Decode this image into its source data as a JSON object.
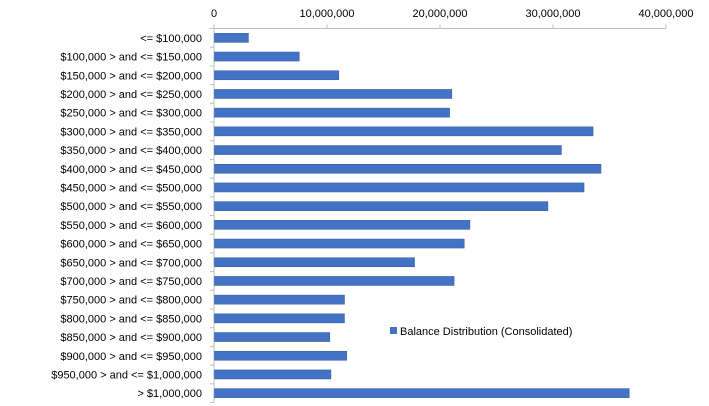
{
  "chart_data": {
    "type": "bar",
    "orientation": "horizontal",
    "categories": [
      "<= $100,000",
      "$100,000 > and <= $150,000",
      "$150,000 > and <= $200,000",
      "$200,000 > and <= $250,000",
      "$250,000 > and <= $300,000",
      "$300,000 > and <= $350,000",
      "$350,000 > and <= $400,000",
      "$400,000 > and <= $450,000",
      "$450,000 > and <= $500,000",
      "$500,000 > and <= $550,000",
      "$550,000 > and <= $600,000",
      "$600,000 > and <= $650,000",
      "$650,000 > and <= $700,000",
      "$700,000 > and <= $750,000",
      "$750,000 > and <= $800,000",
      "$800,000 > and <= $850,000",
      "$850,000 > and <= $900,000",
      "$900,000 > and <= $950,000",
      "$950,000 > and <= $1,000,000",
      "> $1,000,000"
    ],
    "series": [
      {
        "name": "Balance Distribution (Consolidated)",
        "color": "#4472C4",
        "values": [
          3000000,
          7500000,
          11000000,
          21000000,
          20800000,
          33500000,
          30700000,
          34200000,
          32700000,
          29500000,
          22600000,
          22100000,
          17700000,
          21200000,
          11500000,
          11500000,
          10200000,
          11700000,
          10300000,
          36700000
        ]
      }
    ],
    "x_ticks": [
      "0",
      "10,000,000",
      "20,000,000",
      "30,000,000",
      "40,000,000"
    ],
    "xlim": [
      0,
      40000000
    ],
    "x_axis_position": "top",
    "grid": false,
    "legend": "inside-bottom-right",
    "title": "",
    "xlabel": "",
    "ylabel": ""
  }
}
